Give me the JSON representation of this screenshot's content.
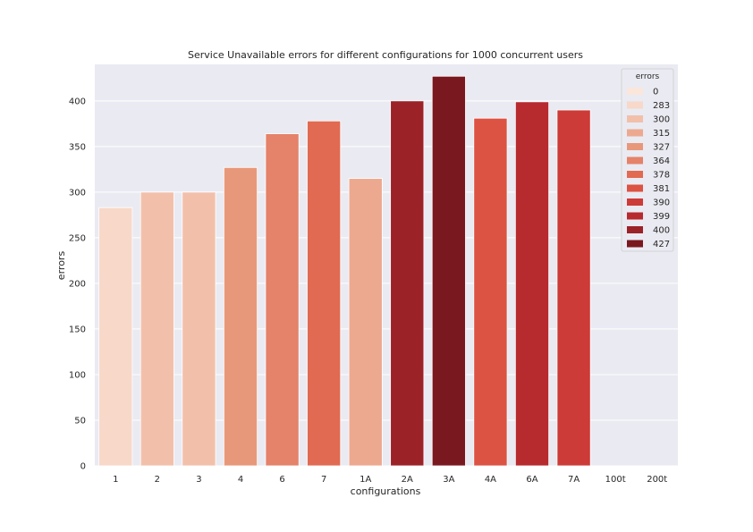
{
  "chart_data": {
    "type": "bar",
    "title": "Service Unavailable errors for different configurations for 1000 concurrent users",
    "xlabel": "configurations",
    "ylabel": "errors",
    "ylim": [
      0,
      440
    ],
    "yticks": [
      0,
      50,
      100,
      150,
      200,
      250,
      300,
      350,
      400
    ],
    "categories": [
      "1",
      "2",
      "3",
      "4",
      "6",
      "7",
      "1A",
      "2A",
      "3A",
      "4A",
      "6A",
      "7A",
      "100t",
      "200t"
    ],
    "values": [
      283,
      300,
      300,
      327,
      364,
      378,
      315,
      400,
      427,
      381,
      399,
      390,
      0,
      0
    ],
    "grid": true,
    "background": "#eaeaf2",
    "legend": {
      "title": "errors",
      "placement": "top-right",
      "entries": [
        "0",
        "283",
        "300",
        "315",
        "327",
        "364",
        "378",
        "381",
        "390",
        "399",
        "400",
        "427"
      ],
      "colors": [
        "#fbe6db",
        "#f7d8c9",
        "#f2c0aa",
        "#eca98f",
        "#e8987a",
        "#e5826a",
        "#e16a52",
        "#dc5243",
        "#cc3b37",
        "#b72a2e",
        "#9b2227",
        "#7a1820"
      ]
    }
  }
}
